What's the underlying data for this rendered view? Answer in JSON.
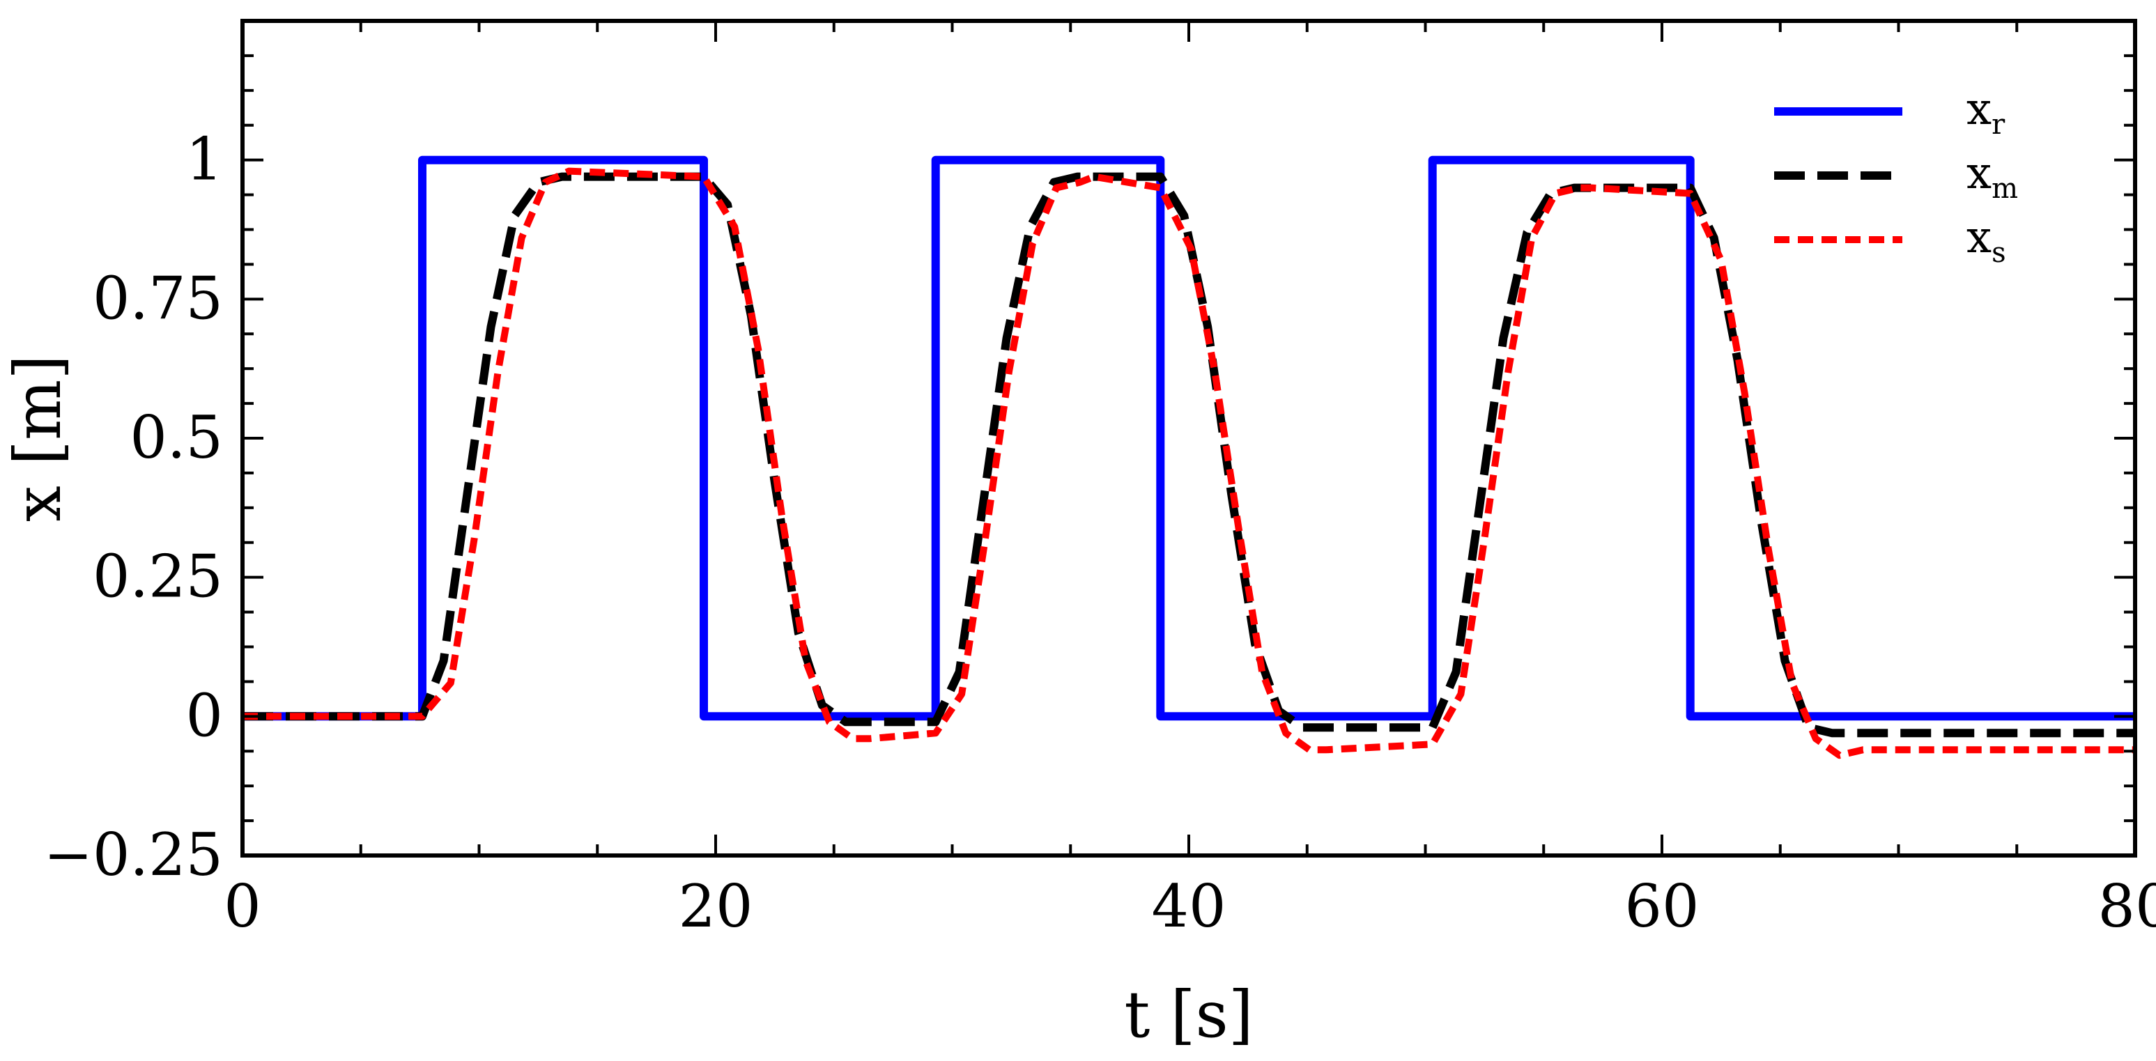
{
  "chart_data": {
    "type": "line",
    "xlabel": "t [s]",
    "ylabel": "x [m]",
    "xlim": [
      0,
      80
    ],
    "ylim": [
      -0.25,
      1.25
    ],
    "x_ticks": [
      0,
      20,
      40,
      60,
      80
    ],
    "y_ticks": [
      -0.25,
      0,
      0.25,
      0.5,
      0.75,
      1
    ],
    "x_tick_labels": [
      "0",
      "20",
      "40",
      "60",
      "80"
    ],
    "y_tick_labels": [
      "−0.25",
      "0",
      "0.25",
      "0.5",
      "0.75",
      "1"
    ],
    "grid": false,
    "legend_position": "top-right",
    "series": [
      {
        "name": "x_r",
        "legend_base": "x",
        "legend_sub": "r",
        "color": "#0000ff",
        "style": "solid",
        "x": [
          0,
          7.6,
          7.6,
          19.5,
          19.5,
          29.3,
          29.3,
          38.8,
          38.8,
          50.3,
          50.3,
          61.2,
          61.2,
          80
        ],
        "y": [
          0,
          0,
          1,
          1,
          0,
          0,
          1,
          1,
          0,
          0,
          1,
          1,
          0,
          0
        ]
      },
      {
        "name": "x_m",
        "legend_base": "x",
        "legend_sub": "m",
        "color": "#000000",
        "style": "dashed",
        "x": [
          0,
          7.6,
          8.5,
          9.5,
          10.5,
          11.5,
          12.5,
          13.5,
          19.5,
          20.5,
          21.5,
          22.5,
          23.5,
          24.5,
          25.5,
          29.3,
          30.3,
          31.3,
          32.3,
          33.3,
          34.3,
          35.3,
          38.8,
          39.8,
          40.8,
          41.8,
          42.8,
          43.8,
          44.8,
          50.3,
          51.3,
          52.3,
          53.3,
          54.3,
          55.3,
          56.3,
          61.2,
          62.2,
          63.2,
          64.2,
          65.2,
          66.2,
          67.2,
          80
        ],
        "y": [
          0,
          0,
          0.1,
          0.4,
          0.7,
          0.9,
          0.96,
          0.97,
          0.97,
          0.92,
          0.72,
          0.42,
          0.15,
          0.02,
          -0.01,
          -0.01,
          0.08,
          0.38,
          0.68,
          0.88,
          0.96,
          0.97,
          0.97,
          0.9,
          0.7,
          0.4,
          0.13,
          0.01,
          -0.02,
          -0.02,
          0.08,
          0.38,
          0.68,
          0.87,
          0.94,
          0.95,
          0.95,
          0.86,
          0.64,
          0.35,
          0.1,
          -0.02,
          -0.03,
          -0.03
        ]
      },
      {
        "name": "x_s",
        "legend_base": "x",
        "legend_sub": "s",
        "color": "#ff0000",
        "style": "dotted",
        "x": [
          0,
          7.6,
          8.8,
          9.8,
          10.8,
          11.8,
          12.8,
          13.8,
          19.5,
          20.8,
          21.8,
          22.8,
          23.8,
          24.8,
          25.8,
          26.5,
          29.3,
          30.4,
          31.4,
          32.4,
          33.4,
          34.4,
          35.4,
          36,
          38.8,
          40.1,
          41.1,
          42.1,
          43.1,
          44.1,
          45.1,
          45.8,
          50.3,
          51.5,
          52.5,
          53.5,
          54.5,
          55.5,
          56.5,
          57,
          61.2,
          62.5,
          63.5,
          64.5,
          65.5,
          66.5,
          67.5,
          68.5,
          80
        ],
        "y": [
          0,
          0,
          0.06,
          0.32,
          0.62,
          0.86,
          0.96,
          0.98,
          0.97,
          0.88,
          0.66,
          0.36,
          0.1,
          -0.01,
          -0.04,
          -0.04,
          -0.03,
          0.04,
          0.32,
          0.62,
          0.85,
          0.95,
          0.96,
          0.97,
          0.95,
          0.84,
          0.62,
          0.34,
          0.08,
          -0.03,
          -0.06,
          -0.06,
          -0.05,
          0.04,
          0.32,
          0.62,
          0.86,
          0.94,
          0.95,
          0.95,
          0.94,
          0.82,
          0.58,
          0.3,
          0.06,
          -0.04,
          -0.07,
          -0.06,
          -0.06
        ]
      }
    ]
  }
}
